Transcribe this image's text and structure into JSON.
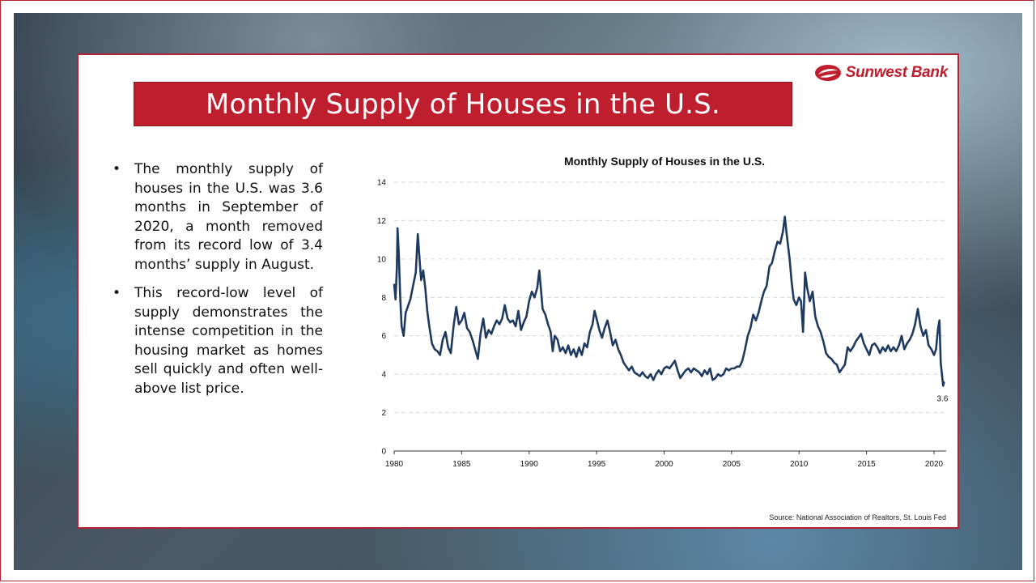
{
  "title": "Monthly Supply of Houses in the U.S.",
  "logo": {
    "text": "Sunwest Bank",
    "color": "#be1e2d"
  },
  "bullets": [
    "The monthly supply of houses in the U.S. was 3.6 months in September of 2020, a month removed from its record low of 3.4 months’ supply in August.",
    "This record-low level of supply demonstrates the intense competition in the housing market as homes sell quickly and often well-above list price."
  ],
  "source": "Source: National Association of Realtors, St. Louis Fed",
  "colors": {
    "accent": "#be1e2d",
    "line": "#1f3a5f"
  },
  "chart_data": {
    "type": "line",
    "title": "Monthly Supply of Houses in the U.S.",
    "xlabel": "",
    "ylabel": "",
    "xlim": [
      1980,
      2020.9
    ],
    "ylim": [
      0,
      14
    ],
    "xticks": [
      1980,
      1985,
      1990,
      1995,
      2000,
      2005,
      2010,
      2015,
      2020
    ],
    "yticks": [
      0,
      2,
      4,
      6,
      8,
      10,
      12,
      14
    ],
    "grid": "horizontal dashed",
    "legend": "none",
    "end_label": "3.6",
    "series": [
      {
        "values": [
          [
            1980.0,
            8.7
          ],
          [
            1980.1,
            7.9
          ],
          [
            1980.2,
            9.5
          ],
          [
            1980.25,
            11.6
          ],
          [
            1980.35,
            10.2
          ],
          [
            1980.45,
            8.0
          ],
          [
            1980.55,
            6.5
          ],
          [
            1980.7,
            6.0
          ],
          [
            1980.85,
            7.2
          ],
          [
            1981.0,
            7.5
          ],
          [
            1981.2,
            7.9
          ],
          [
            1981.4,
            8.6
          ],
          [
            1981.6,
            9.3
          ],
          [
            1981.75,
            11.3
          ],
          [
            1981.9,
            9.8
          ],
          [
            1982.0,
            8.9
          ],
          [
            1982.15,
            9.4
          ],
          [
            1982.3,
            8.5
          ],
          [
            1982.45,
            7.3
          ],
          [
            1982.6,
            6.5
          ],
          [
            1982.8,
            5.6
          ],
          [
            1983.0,
            5.3
          ],
          [
            1983.2,
            5.2
          ],
          [
            1983.4,
            5.0
          ],
          [
            1983.6,
            5.8
          ],
          [
            1983.8,
            6.2
          ],
          [
            1984.0,
            5.4
          ],
          [
            1984.2,
            5.1
          ],
          [
            1984.4,
            6.5
          ],
          [
            1984.6,
            7.5
          ],
          [
            1984.8,
            6.6
          ],
          [
            1985.0,
            6.8
          ],
          [
            1985.2,
            7.2
          ],
          [
            1985.4,
            6.4
          ],
          [
            1985.6,
            6.2
          ],
          [
            1985.8,
            5.8
          ],
          [
            1986.0,
            5.3
          ],
          [
            1986.2,
            4.8
          ],
          [
            1986.4,
            6.1
          ],
          [
            1986.6,
            6.9
          ],
          [
            1986.8,
            5.9
          ],
          [
            1987.0,
            6.3
          ],
          [
            1987.2,
            6.1
          ],
          [
            1987.4,
            6.5
          ],
          [
            1987.6,
            6.8
          ],
          [
            1987.8,
            6.6
          ],
          [
            1988.0,
            6.9
          ],
          [
            1988.2,
            7.6
          ],
          [
            1988.4,
            6.9
          ],
          [
            1988.6,
            6.7
          ],
          [
            1988.8,
            6.8
          ],
          [
            1989.0,
            6.5
          ],
          [
            1989.2,
            7.3
          ],
          [
            1989.4,
            6.3
          ],
          [
            1989.6,
            6.7
          ],
          [
            1989.8,
            7.0
          ],
          [
            1990.0,
            7.8
          ],
          [
            1990.2,
            8.3
          ],
          [
            1990.4,
            8.0
          ],
          [
            1990.6,
            8.5
          ],
          [
            1990.75,
            9.4
          ],
          [
            1990.9,
            8.2
          ],
          [
            1991.0,
            7.4
          ],
          [
            1991.2,
            7.1
          ],
          [
            1991.4,
            6.6
          ],
          [
            1991.6,
            6.2
          ],
          [
            1991.75,
            5.2
          ],
          [
            1991.9,
            6.0
          ],
          [
            1992.1,
            5.8
          ],
          [
            1992.3,
            5.2
          ],
          [
            1992.5,
            5.4
          ],
          [
            1992.7,
            5.1
          ],
          [
            1992.9,
            5.5
          ],
          [
            1993.1,
            5.0
          ],
          [
            1993.3,
            5.3
          ],
          [
            1993.5,
            4.9
          ],
          [
            1993.7,
            5.4
          ],
          [
            1993.9,
            5.0
          ],
          [
            1994.1,
            5.6
          ],
          [
            1994.3,
            5.4
          ],
          [
            1994.5,
            6.2
          ],
          [
            1994.7,
            6.6
          ],
          [
            1994.85,
            7.3
          ],
          [
            1995.0,
            6.9
          ],
          [
            1995.2,
            6.3
          ],
          [
            1995.4,
            5.9
          ],
          [
            1995.6,
            6.4
          ],
          [
            1995.8,
            6.8
          ],
          [
            1996.0,
            6.2
          ],
          [
            1996.2,
            5.5
          ],
          [
            1996.4,
            5.8
          ],
          [
            1996.6,
            5.3
          ],
          [
            1996.8,
            5.0
          ],
          [
            1997.0,
            4.6
          ],
          [
            1997.2,
            4.4
          ],
          [
            1997.4,
            4.2
          ],
          [
            1997.6,
            4.4
          ],
          [
            1997.8,
            4.1
          ],
          [
            1998.0,
            4.0
          ],
          [
            1998.2,
            3.9
          ],
          [
            1998.4,
            4.1
          ],
          [
            1998.6,
            3.9
          ],
          [
            1998.8,
            3.8
          ],
          [
            1999.0,
            4.0
          ],
          [
            1999.2,
            3.7
          ],
          [
            1999.4,
            4.0
          ],
          [
            1999.6,
            4.2
          ],
          [
            1999.8,
            4.0
          ],
          [
            2000.0,
            4.3
          ],
          [
            2000.2,
            4.4
          ],
          [
            2000.4,
            4.3
          ],
          [
            2000.6,
            4.5
          ],
          [
            2000.8,
            4.7
          ],
          [
            2001.0,
            4.2
          ],
          [
            2001.2,
            3.8
          ],
          [
            2001.4,
            4.0
          ],
          [
            2001.6,
            4.2
          ],
          [
            2001.8,
            4.3
          ],
          [
            2002.0,
            4.1
          ],
          [
            2002.2,
            4.3
          ],
          [
            2002.4,
            4.2
          ],
          [
            2002.6,
            4.1
          ],
          [
            2002.8,
            3.9
          ],
          [
            2003.0,
            4.2
          ],
          [
            2003.2,
            4.0
          ],
          [
            2003.4,
            4.3
          ],
          [
            2003.6,
            3.7
          ],
          [
            2003.8,
            3.8
          ],
          [
            2004.0,
            4.0
          ],
          [
            2004.2,
            3.9
          ],
          [
            2004.4,
            4.0
          ],
          [
            2004.6,
            4.3
          ],
          [
            2004.8,
            4.2
          ],
          [
            2005.0,
            4.3
          ],
          [
            2005.2,
            4.3
          ],
          [
            2005.4,
            4.4
          ],
          [
            2005.6,
            4.4
          ],
          [
            2005.8,
            4.7
          ],
          [
            2006.0,
            5.3
          ],
          [
            2006.2,
            6.0
          ],
          [
            2006.4,
            6.4
          ],
          [
            2006.6,
            7.1
          ],
          [
            2006.8,
            6.8
          ],
          [
            2007.0,
            7.2
          ],
          [
            2007.2,
            7.8
          ],
          [
            2007.4,
            8.3
          ],
          [
            2007.6,
            8.6
          ],
          [
            2007.8,
            9.6
          ],
          [
            2008.0,
            9.8
          ],
          [
            2008.2,
            10.4
          ],
          [
            2008.4,
            10.9
          ],
          [
            2008.6,
            10.8
          ],
          [
            2008.8,
            11.4
          ],
          [
            2008.95,
            12.2
          ],
          [
            2009.1,
            11.2
          ],
          [
            2009.3,
            10.0
          ],
          [
            2009.45,
            8.8
          ],
          [
            2009.6,
            7.9
          ],
          [
            2009.8,
            7.6
          ],
          [
            2010.0,
            8.0
          ],
          [
            2010.15,
            7.8
          ],
          [
            2010.3,
            6.2
          ],
          [
            2010.45,
            9.3
          ],
          [
            2010.6,
            8.5
          ],
          [
            2010.8,
            7.8
          ],
          [
            2011.0,
            8.3
          ],
          [
            2011.2,
            7.0
          ],
          [
            2011.4,
            6.5
          ],
          [
            2011.6,
            6.2
          ],
          [
            2011.8,
            5.7
          ],
          [
            2012.0,
            5.1
          ],
          [
            2012.2,
            4.9
          ],
          [
            2012.4,
            4.8
          ],
          [
            2012.6,
            4.6
          ],
          [
            2012.8,
            4.5
          ],
          [
            2013.0,
            4.1
          ],
          [
            2013.2,
            4.3
          ],
          [
            2013.4,
            4.5
          ],
          [
            2013.6,
            5.4
          ],
          [
            2013.8,
            5.2
          ],
          [
            2014.0,
            5.4
          ],
          [
            2014.2,
            5.7
          ],
          [
            2014.4,
            5.9
          ],
          [
            2014.6,
            6.1
          ],
          [
            2014.8,
            5.6
          ],
          [
            2015.0,
            5.3
          ],
          [
            2015.2,
            5.0
          ],
          [
            2015.4,
            5.5
          ],
          [
            2015.6,
            5.6
          ],
          [
            2015.8,
            5.4
          ],
          [
            2016.0,
            5.1
          ],
          [
            2016.2,
            5.4
          ],
          [
            2016.4,
            5.2
          ],
          [
            2016.6,
            5.5
          ],
          [
            2016.8,
            5.2
          ],
          [
            2017.0,
            5.4
          ],
          [
            2017.2,
            5.2
          ],
          [
            2017.4,
            5.5
          ],
          [
            2017.6,
            6.0
          ],
          [
            2017.8,
            5.3
          ],
          [
            2018.0,
            5.6
          ],
          [
            2018.2,
            5.8
          ],
          [
            2018.4,
            6.1
          ],
          [
            2018.6,
            6.6
          ],
          [
            2018.8,
            7.4
          ],
          [
            2019.0,
            6.5
          ],
          [
            2019.2,
            6.0
          ],
          [
            2019.4,
            6.3
          ],
          [
            2019.6,
            5.5
          ],
          [
            2019.8,
            5.3
          ],
          [
            2020.0,
            5.0
          ],
          [
            2020.15,
            5.3
          ],
          [
            2020.3,
            6.4
          ],
          [
            2020.4,
            6.8
          ],
          [
            2020.5,
            4.6
          ],
          [
            2020.6,
            3.9
          ],
          [
            2020.68,
            3.4
          ],
          [
            2020.75,
            3.6
          ]
        ]
      }
    ]
  }
}
